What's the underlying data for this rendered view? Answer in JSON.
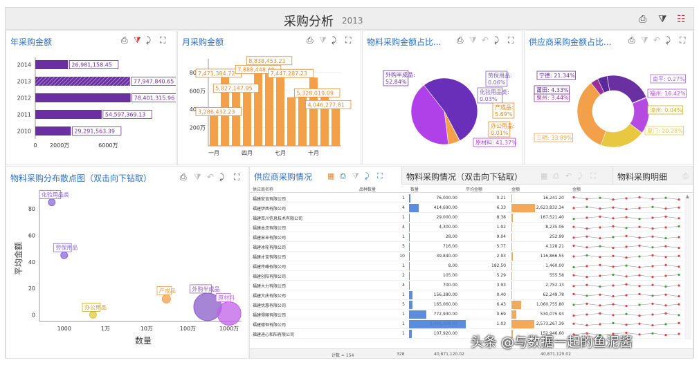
{
  "title": {
    "text": "采购分析",
    "year": "2013",
    "icons": [
      "share-icon",
      "clear-filter-icon",
      "settings-icon"
    ]
  },
  "panels": {
    "annual": {
      "title": "年采购金额"
    },
    "monthly": {
      "title": "月采购金额"
    },
    "material_share": {
      "title": "物料采购金额占比..."
    },
    "supplier_share": {
      "title": "供应商采购金额占比..."
    },
    "scatter": {
      "title": "物料采购分布散点图（双击向下钻取）"
    },
    "tabs": [
      "供应商采购情况",
      "物料采购情况（双击向下钻取）",
      "物料采购明细"
    ]
  },
  "chart_data": [
    {
      "type": "bar",
      "orientation": "horizontal",
      "categories": [
        "2014",
        "2013",
        "2012",
        "2011",
        "2010"
      ],
      "values": [
        26981158.45,
        77947840.65,
        78401315.96,
        54597369.13,
        29291563.39
      ],
      "labels": [
        "26,981,158.45",
        "77,947,840.65",
        "78,401,315.96",
        "54,597,369.13",
        "29,291,563.39"
      ],
      "ticks": [
        "0",
        "2000万",
        "6000万"
      ],
      "highlight": "2013",
      "color": "#6a2fa0"
    },
    {
      "type": "bar",
      "categories": [
        "一月",
        "",
        "",
        "四月",
        "",
        "",
        "七月",
        "",
        "",
        "十月",
        "",
        ""
      ],
      "xticks": [
        "一月",
        "四月",
        "七月",
        "十月"
      ],
      "yticks": [
        "200万",
        "400万",
        "600万",
        "800万"
      ],
      "values": [
        3286432.23,
        7471384.72,
        5827147.95,
        6400000,
        7888448.4,
        8838453.21,
        7900000,
        5300000,
        6200000,
        7447287.23,
        5328019.09,
        4046277.81
      ],
      "labels": [
        {
          "i": 0,
          "t": "3,286,432.23"
        },
        {
          "i": 1,
          "t": "7,471,384.72"
        },
        {
          "i": 2,
          "t": "5,827,147.95"
        },
        {
          "i": 4,
          "t": "7,888,448.40"
        },
        {
          "i": 5,
          "t": "8,838,453.21"
        },
        {
          "i": 9,
          "t": "7,447,287.23"
        },
        {
          "i": 10,
          "t": "5,328,019.09"
        },
        {
          "i": 11,
          "t": "4,046,277.81"
        }
      ],
      "ylim": [
        0,
        9500000
      ],
      "color": "#f2a04a"
    },
    {
      "type": "pie",
      "slices": [
        {
          "name": "外购半成品",
          "label": "外购半成品:\n52.84%",
          "value": 52.84,
          "color": "#6a2fb8"
        },
        {
          "name": "劳保用品",
          "label": "劳保用品:\n0.06%",
          "value": 0.06,
          "color": "#e0c840"
        },
        {
          "name": "化验用品类",
          "label": "化验用品类:\n0.03%",
          "value": 0.03,
          "color": "#7a5cc8"
        },
        {
          "name": "产成品",
          "label": "产成品:\n5.69%",
          "value": 5.69,
          "color": "#f2a04a"
        },
        {
          "name": "办公用品",
          "label": "办公用品:\n0.01%",
          "value": 0.01,
          "color": "#e8a040"
        },
        {
          "name": "原材料",
          "label": "原材料: 41.37%",
          "value": 41.37,
          "color": "#b040e8"
        }
      ]
    },
    {
      "type": "pie",
      "donut": true,
      "slices": [
        {
          "name": "宁德",
          "label": "宁德: 21.34%",
          "value": 21.34,
          "color": "#6a2fa0"
        },
        {
          "name": "南平",
          "label": "南平: 0.27%",
          "value": 0.27,
          "color": "#9b6ad8"
        },
        {
          "name": "福州",
          "label": "福州: 16.42%",
          "value": 16.42,
          "color": "#b64ae0"
        },
        {
          "name": "漳州",
          "label": "漳州: 0.04%",
          "value": 0.04,
          "color": "#e8d040"
        },
        {
          "name": "厦门",
          "label": "厦门: 20.28%",
          "value": 20.28,
          "color": "#e8c840"
        },
        {
          "name": "三明",
          "label": "三明: 33.89%",
          "value": 33.89,
          "color": "#f2a04a"
        },
        {
          "name": "泉州",
          "label": "泉州: 3.44%",
          "value": 3.44,
          "color": "#9a2f9a"
        },
        {
          "name": "莆田",
          "label": "莆田: 4.33%",
          "value": 4.33,
          "color": "#5a2a9a"
        }
      ]
    },
    {
      "type": "scatter",
      "xlabel": "数量",
      "ylabel": "平均金额",
      "xticks": [
        "1000",
        "1万",
        "10万",
        "100万",
        "1000万"
      ],
      "yticks": [
        "0",
        "20",
        "40",
        "60",
        "80"
      ],
      "xlim_log10": [
        2.4,
        7.3
      ],
      "ylim": [
        -5,
        90
      ],
      "points": [
        {
          "name": "化验用品类",
          "x": 500,
          "y": 85,
          "r": 5,
          "color": "#8a6ad8"
        },
        {
          "name": "劳保用品",
          "x": 1000,
          "y": 45,
          "r": 5,
          "color": "#8a6ad8"
        },
        {
          "name": "办公用品",
          "x": 5000,
          "y": 0,
          "r": 5,
          "color": "#e0c840"
        },
        {
          "name": "产成品",
          "x": 300000,
          "y": 12,
          "r": 6,
          "color": "#f2a04a"
        },
        {
          "name": "外购半成品",
          "x": 3000000,
          "y": 6,
          "r": 20,
          "color": "#8a5cc8"
        },
        {
          "name": "原材料",
          "x": 10000000,
          "y": 1,
          "r": 17,
          "color": "#c060e8"
        }
      ]
    }
  ],
  "table": {
    "headers": [
      "供应商名称",
      "品种数量",
      "数量",
      "平均金额",
      "金额",
      "金额"
    ],
    "rows": [
      [
        "福建安吉有限公司",
        "1",
        "76,000.00",
        "0.21",
        "16,241.20"
      ],
      [
        "福建伊西有限公司",
        "4",
        "414,690.00",
        "6.33",
        "2,623,832.34"
      ],
      [
        "福建百川信息技术有限公司",
        "1",
        "29,000.00",
        "8.38",
        "167,521.40"
      ],
      [
        "福建本恣有限公司",
        "4",
        "4,300.00",
        "1.92",
        "8,235.06"
      ],
      [
        "福建宋丰有限公司",
        "1",
        "28.00",
        "9.04",
        "252.99"
      ],
      [
        "福建冰轮有限公司",
        "5",
        "716.00",
        "5.77",
        "4,128.21"
      ],
      [
        "福建才宝有限公司",
        "10",
        "39,840.00",
        "2.93",
        "116,866.55"
      ],
      [
        "福建传峰有限公司",
        "1",
        "8.00",
        "182.50",
        "1,460.00"
      ],
      [
        "福建创阳有限公司",
        "2",
        "105.00",
        "5.29",
        "555.58"
      ],
      [
        "福建大力有限公司",
        "4",
        "700.00",
        "3.93",
        "2,752.13"
      ],
      [
        "福建大庆有限公司",
        "1",
        "156,380.00",
        "0.40",
        "62,249.78"
      ],
      [
        "福建优惠有限公司",
        "5",
        "165,060.00",
        "6.43",
        "1,060,755.80"
      ],
      [
        "福建得翔有限公司",
        "1",
        "772,930.00",
        "0.69",
        "530,075.93"
      ],
      [
        "福建德恒有限公司",
        "1",
        "2,485,000.00",
        "1.03",
        "2,573,267.39"
      ],
      [
        "福建迪心和阳有限公司",
        "1",
        "107,920.00",
        "",
        "152,946.60"
      ]
    ],
    "qty_bars": [
      0.03,
      0.17,
      0.01,
      0.002,
      0.001,
      0.001,
      0.016,
      0.001,
      0.001,
      0.001,
      0.063,
      0.066,
      0.31,
      1.0,
      0.043
    ],
    "amt_bars": [
      0.006,
      1.0,
      0.064,
      0.003,
      0.001,
      0.002,
      0.045,
      0.001,
      0.001,
      0.001,
      0.024,
      0.4,
      0.2,
      0.98,
      0.058
    ],
    "footer": {
      "count": "计数 = 154",
      "qty_sum": "328",
      "total": "40,871,120.02",
      "avg": "",
      "amt": "40,871,120.02"
    }
  },
  "watermark": "头条 @与数据一起的鱼泥酱"
}
